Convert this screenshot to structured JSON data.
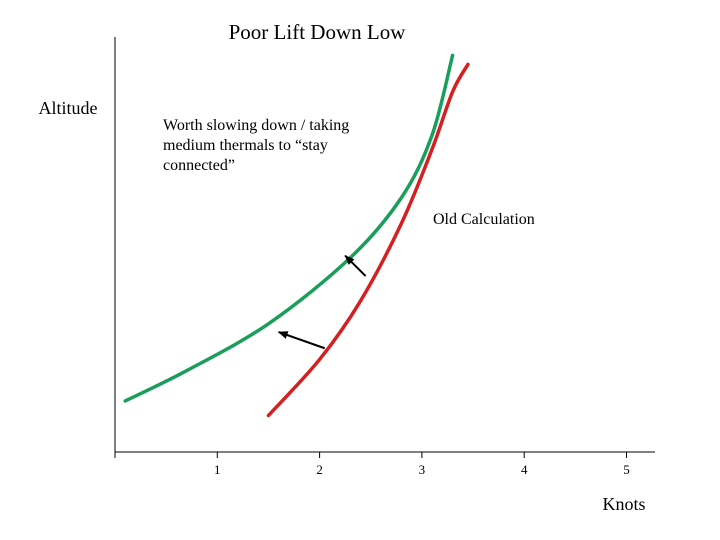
{
  "chart_data": {
    "type": "line",
    "title": "Poor Lift Down Low",
    "xlabel": "Knots",
    "ylabel": "Altitude",
    "xlim": [
      0,
      5.3
    ],
    "ylim": [
      0,
      100
    ],
    "x_ticks": [
      1,
      2,
      3,
      4,
      5
    ],
    "grid": false,
    "series": [
      {
        "name": "Worth slowing down / taking medium thermals to “stay connected”",
        "color": "#1a9e5a",
        "points": [
          [
            0.1,
            12.3
          ],
          [
            0.7,
            19.6
          ],
          [
            1.5,
            30.9
          ],
          [
            2.3,
            46.8
          ],
          [
            2.8,
            61.3
          ],
          [
            3.1,
            76.4
          ],
          [
            3.3,
            95.6
          ]
        ]
      },
      {
        "name": "Old Calculation",
        "color": "#d42020",
        "points": [
          [
            1.5,
            8.8
          ],
          [
            2.0,
            22.3
          ],
          [
            2.4,
            36.4
          ],
          [
            2.8,
            55.1
          ],
          [
            3.1,
            73.0
          ],
          [
            3.3,
            86.8
          ],
          [
            3.45,
            93.4
          ]
        ]
      }
    ],
    "annotations": [
      {
        "id": "green",
        "text_lines": [
          "Worth slowing down / taking",
          "medium thermals to “stay",
          "connected”"
        ]
      },
      {
        "id": "red",
        "text_lines": [
          "Old Calculation"
        ]
      }
    ],
    "arrows": [
      {
        "from": [
          2.05,
          25.0
        ],
        "to": [
          1.6,
          28.9
        ]
      },
      {
        "from": [
          2.45,
          42.4
        ],
        "to": [
          2.25,
          47.3
        ]
      }
    ]
  }
}
